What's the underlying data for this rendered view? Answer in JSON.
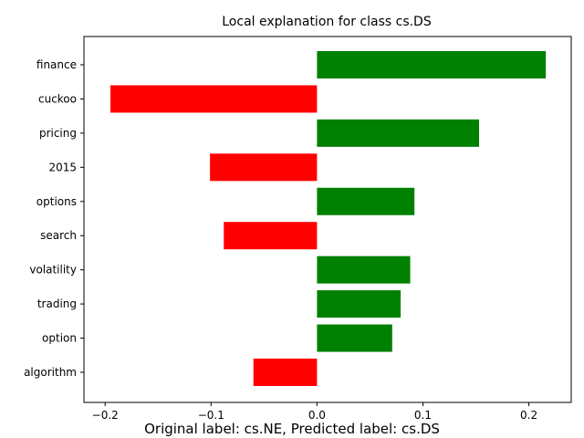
{
  "chart_data": {
    "type": "bar",
    "orientation": "horizontal",
    "title": "Local explanation for class cs.DS",
    "caption": "Original label: cs.NE, Predicted label: cs.DS",
    "xlabel": "",
    "ylabel": "",
    "xlim": [
      -0.22,
      0.24
    ],
    "xticks": [
      -0.2,
      -0.1,
      0.0,
      0.1,
      0.2
    ],
    "xtick_labels": [
      "−0.2",
      "−0.1",
      "0.0",
      "0.1",
      "0.2"
    ],
    "categories": [
      "finance",
      "cuckoo",
      "pricing",
      "2015",
      "options",
      "search",
      "volatility",
      "trading",
      "option",
      "algorithm"
    ],
    "values": [
      0.216,
      -0.195,
      0.153,
      -0.101,
      0.092,
      -0.088,
      0.088,
      0.079,
      0.071,
      -0.06
    ],
    "colors": {
      "positive": "#008000",
      "negative": "#ff0000"
    },
    "grid": false,
    "legend": "none"
  }
}
